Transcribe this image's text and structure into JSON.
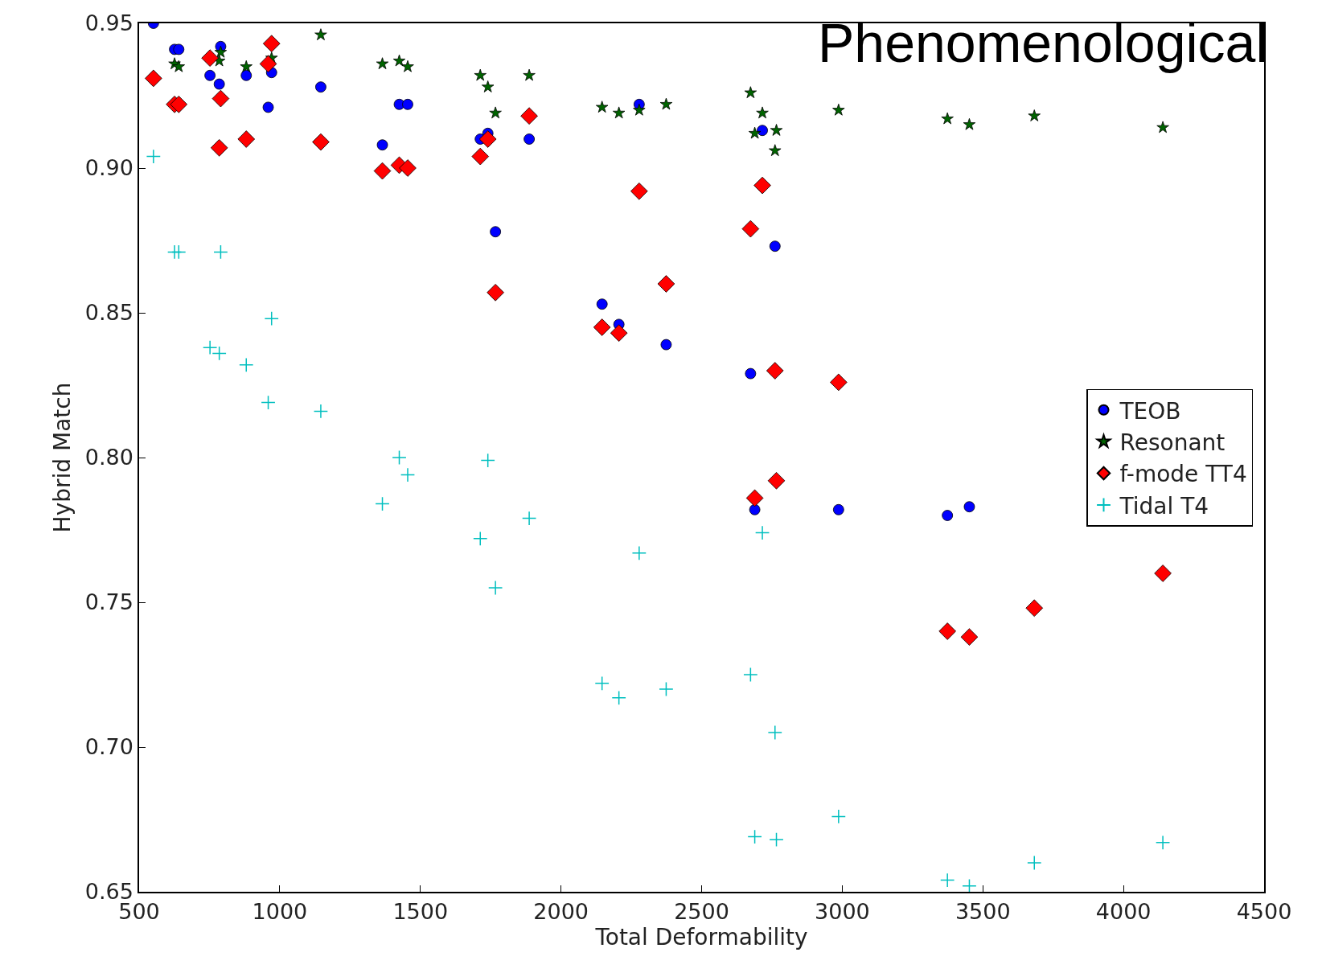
{
  "chart_data": {
    "type": "scatter",
    "title": "Phenomenological",
    "xlabel": "Total Deformability",
    "ylabel": "Hybrid Match",
    "xlim": [
      500,
      4500
    ],
    "xticks": [
      500,
      1000,
      1500,
      2000,
      2500,
      3000,
      3500,
      4000,
      4500
    ],
    "ylim": [
      0.65,
      0.95
    ],
    "yticks": [
      {
        "value": 0.65,
        "label": "0.65"
      },
      {
        "value": 0.7,
        "label": "0.70"
      },
      {
        "value": 0.75,
        "label": "0.75"
      },
      {
        "value": 0.8,
        "label": "0.80"
      },
      {
        "value": 0.85,
        "label": "0.85"
      },
      {
        "value": 0.9,
        "label": "0.90"
      },
      {
        "value": 0.95,
        "label": "0.95"
      }
    ],
    "legend": "right",
    "series": [
      {
        "name": "TEOB",
        "color": "#0000ff",
        "marker": "circle",
        "x": [
          551,
          626,
          641,
          752,
          785,
          790,
          881,
          959,
          971,
          1146,
          1365,
          1425,
          1455,
          1713,
          1740,
          1767,
          1887,
          2146,
          2206,
          2278,
          2374,
          2674,
          2689,
          2716,
          2761,
          2987,
          3374,
          3452
        ],
        "values": [
          0.95,
          0.941,
          0.941,
          0.932,
          0.929,
          0.942,
          0.932,
          0.921,
          0.933,
          0.928,
          0.908,
          0.922,
          0.922,
          0.91,
          0.912,
          0.878,
          0.91,
          0.853,
          0.846,
          0.922,
          0.839,
          0.829,
          0.782,
          0.913,
          0.873,
          0.782,
          0.78,
          0.783
        ]
      },
      {
        "name": "Resonant",
        "color": "#006400",
        "marker": "star",
        "x": [
          626,
          641,
          785,
          790,
          881,
          971,
          1146,
          1365,
          1425,
          1455,
          1713,
          1740,
          1767,
          1887,
          2146,
          2206,
          2278,
          2374,
          2674,
          2689,
          2716,
          2761,
          2766,
          2987,
          3374,
          3452,
          3683,
          4140
        ],
        "values": [
          0.936,
          0.935,
          0.937,
          0.94,
          0.935,
          0.938,
          0.946,
          0.936,
          0.937,
          0.935,
          0.932,
          0.928,
          0.919,
          0.932,
          0.921,
          0.919,
          0.92,
          0.922,
          0.926,
          0.912,
          0.919,
          0.906,
          0.913,
          0.92,
          0.917,
          0.915,
          0.918,
          0.914
        ]
      },
      {
        "name": "f-mode TT4",
        "color": "#ff0000",
        "marker": "diamond",
        "x": [
          551,
          626,
          641,
          752,
          785,
          790,
          881,
          959,
          971,
          1146,
          1365,
          1425,
          1455,
          1713,
          1740,
          1767,
          1887,
          2146,
          2206,
          2278,
          2374,
          2674,
          2689,
          2716,
          2761,
          2766,
          2987,
          3374,
          3452,
          3683,
          4140
        ],
        "values": [
          0.931,
          0.922,
          0.922,
          0.938,
          0.907,
          0.924,
          0.91,
          0.936,
          0.943,
          0.909,
          0.899,
          0.901,
          0.9,
          0.904,
          0.91,
          0.857,
          0.918,
          0.845,
          0.843,
          0.892,
          0.86,
          0.879,
          0.786,
          0.894,
          0.83,
          0.792,
          0.826,
          0.74,
          0.738,
          0.748,
          0.76
        ]
      },
      {
        "name": "Tidal T4",
        "color": "#00bfbf",
        "marker": "cross",
        "x": [
          551,
          626,
          641,
          752,
          785,
          790,
          881,
          959,
          971,
          1146,
          1365,
          1425,
          1455,
          1713,
          1740,
          1767,
          1887,
          2146,
          2206,
          2278,
          2374,
          2674,
          2689,
          2716,
          2761,
          2766,
          2987,
          3374,
          3452,
          3683,
          4140
        ],
        "values": [
          0.904,
          0.871,
          0.871,
          0.838,
          0.836,
          0.871,
          0.832,
          0.819,
          0.848,
          0.816,
          0.784,
          0.8,
          0.794,
          0.772,
          0.799,
          0.755,
          0.779,
          0.722,
          0.717,
          0.767,
          0.72,
          0.725,
          0.669,
          0.774,
          0.705,
          0.668,
          0.676,
          0.654,
          0.652,
          0.66,
          0.667
        ]
      }
    ]
  }
}
